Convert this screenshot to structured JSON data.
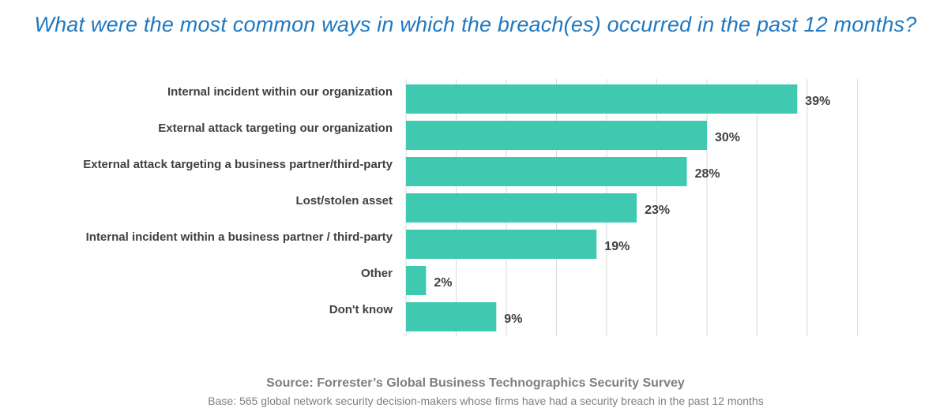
{
  "chart_data": {
    "type": "bar",
    "orientation": "horizontal",
    "title": "What were the most common ways in which the breach(es) occurred in the past 12 months?",
    "categories": [
      "Internal incident within our organization",
      "External attack targeting our organization",
      "External attack targeting a business partner/third-party",
      "Lost/stolen asset",
      "Internal incident within a business partner / third-party",
      "Other",
      "Don't know"
    ],
    "values": [
      39,
      30,
      28,
      23,
      19,
      2,
      9
    ],
    "value_labels": [
      "39%",
      "30%",
      "28%",
      "23%",
      "19%",
      "2%",
      "9%"
    ],
    "xlim": [
      0,
      45
    ],
    "grid": "vertical gridlines",
    "legend": "none",
    "bar_color": "#40c9b1",
    "title_color": "#1f78c1"
  },
  "footer": {
    "source": "Source: Forrester’s Global Business Technographics Security Survey",
    "base": "Base: 565 global network security decision-makers whose firms have had a security breach in the past 12 months"
  }
}
